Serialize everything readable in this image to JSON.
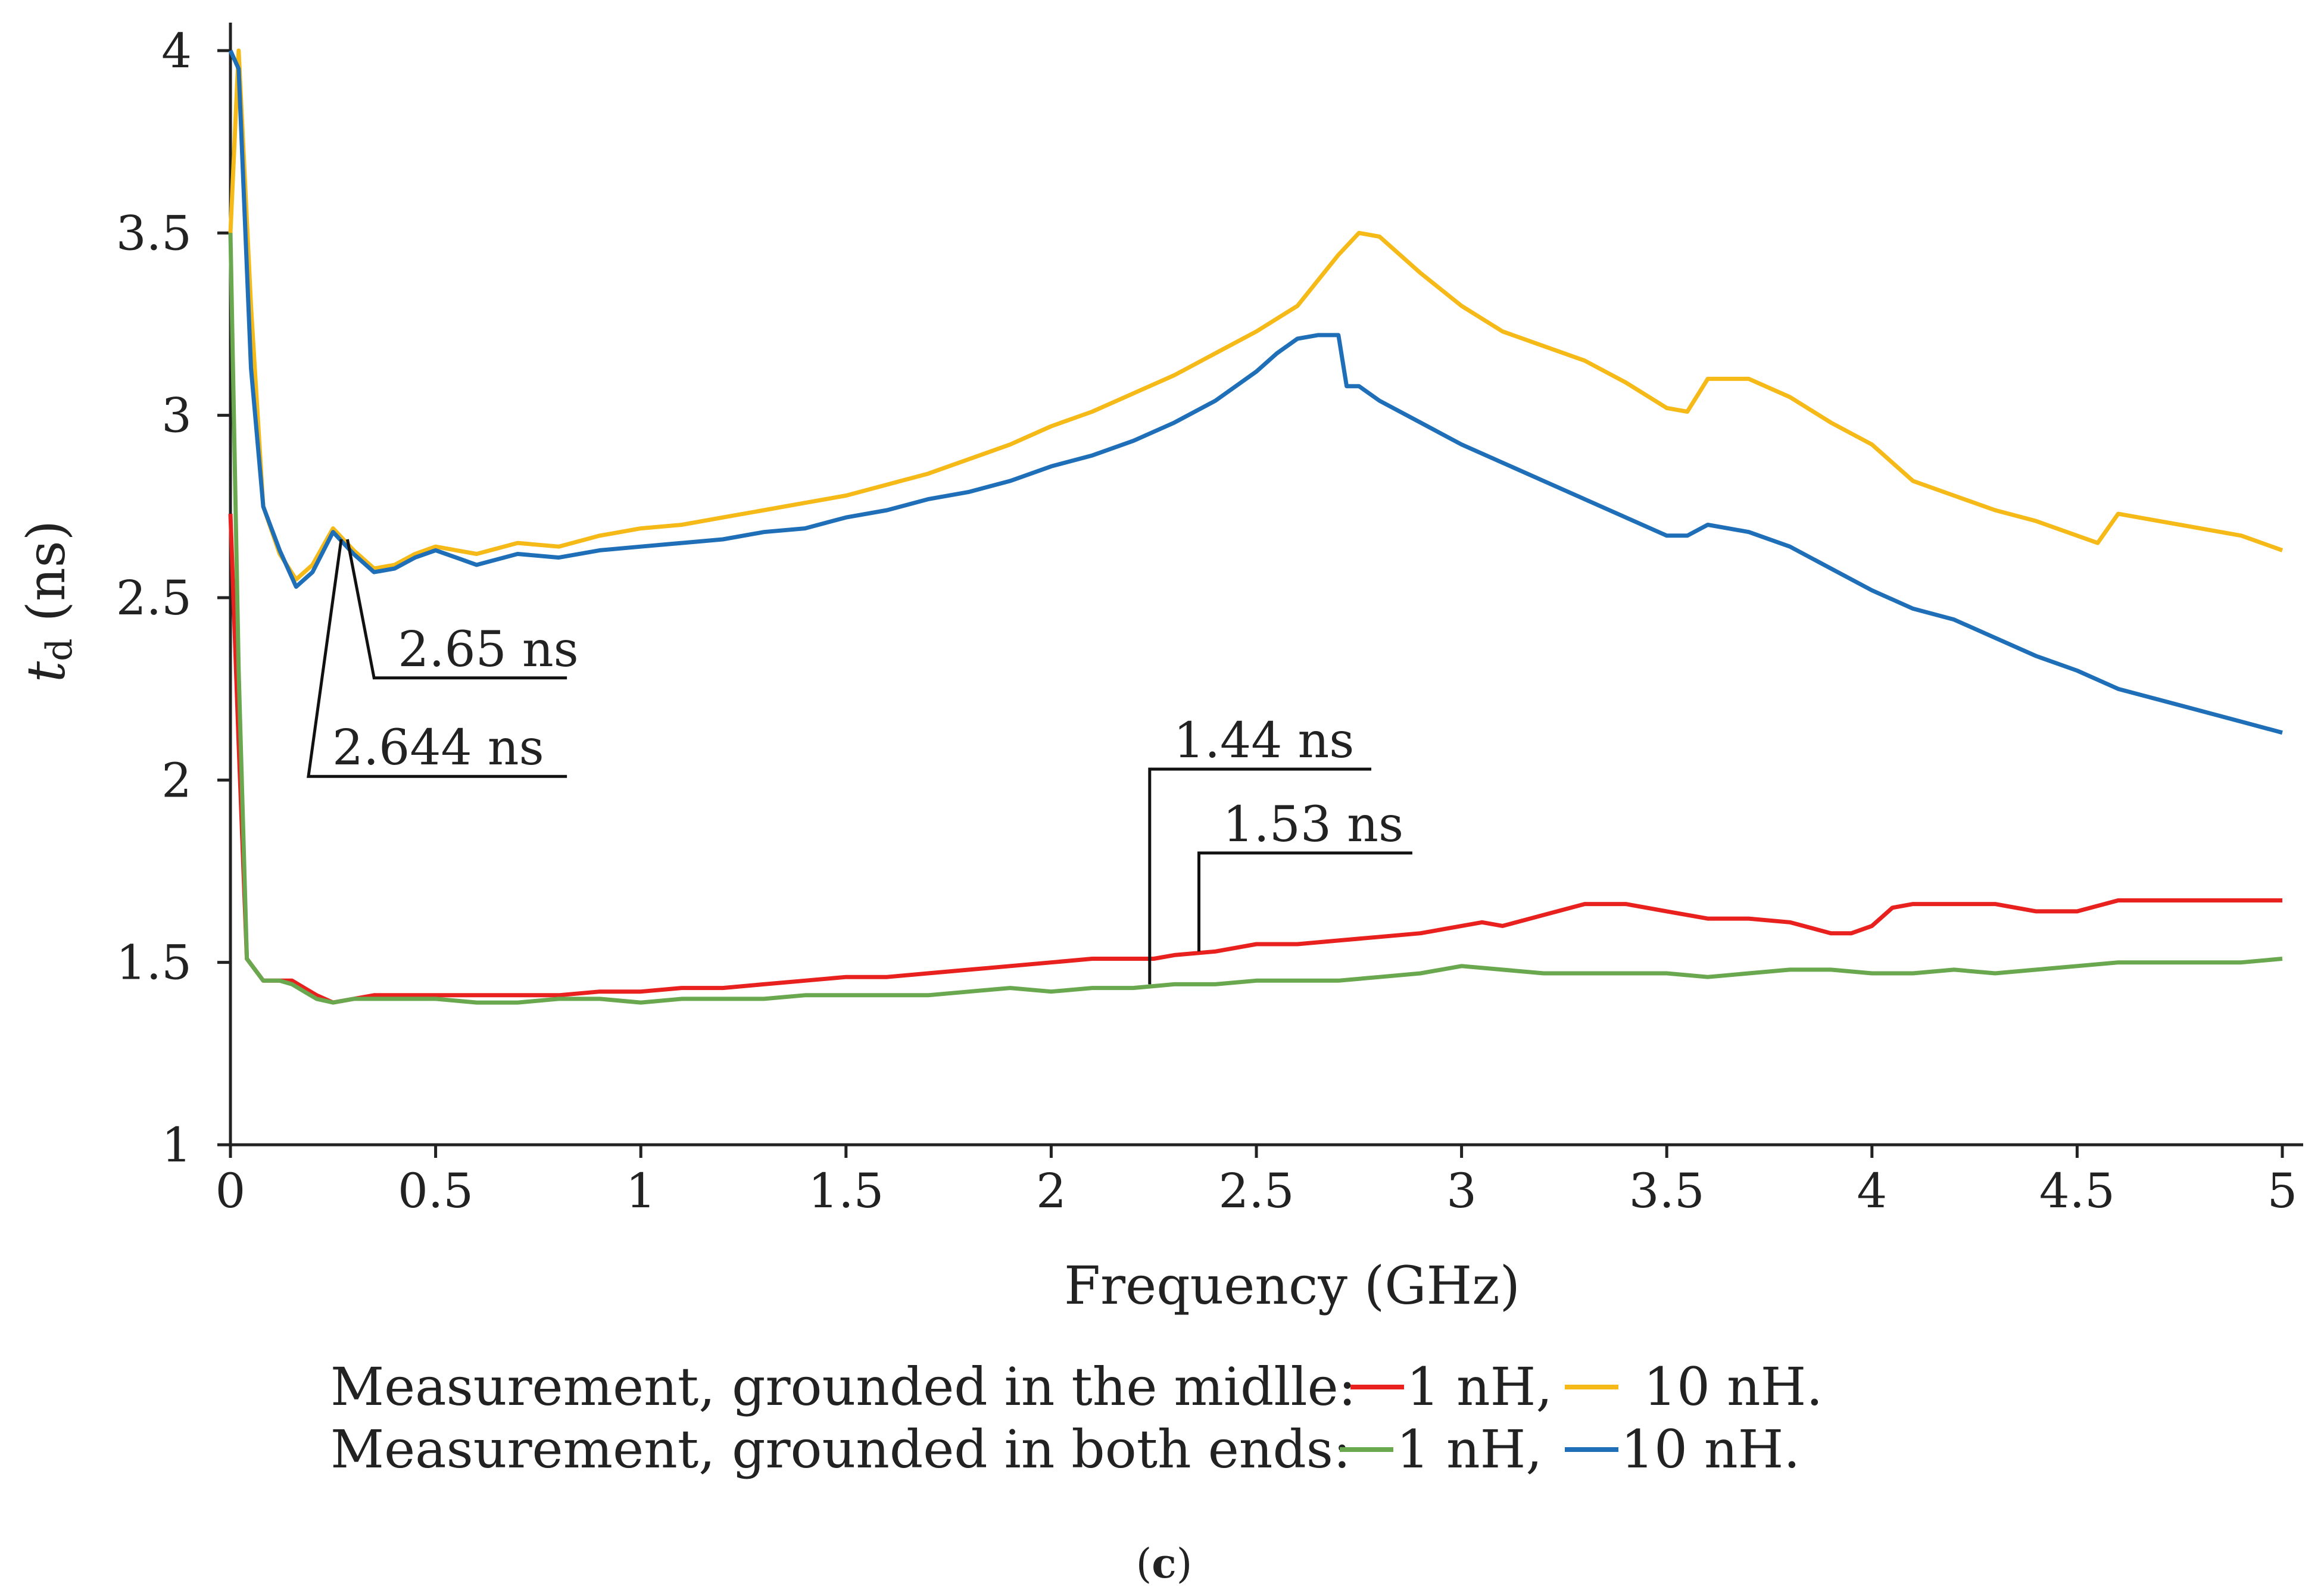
{
  "chart_data": {
    "type": "line",
    "xlabel": "Frequency  (GHz)",
    "ylabel_main": "t",
    "ylabel_sub": "d",
    "ylabel_unit": " (ns)",
    "xlim": [
      0,
      5
    ],
    "ylim": [
      1,
      4
    ],
    "xticks": [
      0,
      0.5,
      1,
      1.5,
      2,
      2.5,
      3,
      3.5,
      4,
      4.5,
      5
    ],
    "xtick_labels": [
      "0",
      "0.5",
      "1",
      "1.5",
      "2",
      "2.5",
      "3",
      "3.5",
      "4",
      "4.5",
      "5"
    ],
    "yticks": [
      1,
      1.5,
      2,
      2.5,
      3,
      3.5,
      4
    ],
    "ytick_labels": [
      "1",
      "1.5",
      "2",
      "2.5",
      "3",
      "3.5",
      "4"
    ],
    "grid": false,
    "series": [
      {
        "name": "Measurement, grounded in the midlle: 1 nH",
        "color": "#e8201e",
        "x": [
          0,
          0.02,
          0.04,
          0.08,
          0.12,
          0.15,
          0.18,
          0.21,
          0.25,
          0.3,
          0.35,
          0.4,
          0.45,
          0.5,
          0.6,
          0.7,
          0.8,
          0.9,
          1.0,
          1.1,
          1.2,
          1.3,
          1.4,
          1.5,
          1.6,
          1.7,
          1.8,
          1.9,
          2.0,
          2.1,
          2.2,
          2.25,
          2.3,
          2.4,
          2.5,
          2.6,
          2.7,
          2.8,
          2.9,
          3.0,
          3.05,
          3.1,
          3.2,
          3.3,
          3.4,
          3.5,
          3.6,
          3.7,
          3.8,
          3.9,
          3.95,
          4.0,
          4.05,
          4.1,
          4.2,
          4.3,
          4.4,
          4.5,
          4.6,
          4.7,
          4.8,
          4.9,
          5.0
        ],
        "y": [
          2.73,
          2.1,
          1.51,
          1.45,
          1.45,
          1.45,
          1.43,
          1.41,
          1.39,
          1.4,
          1.41,
          1.41,
          1.41,
          1.41,
          1.41,
          1.41,
          1.41,
          1.42,
          1.42,
          1.43,
          1.43,
          1.44,
          1.45,
          1.46,
          1.46,
          1.47,
          1.48,
          1.49,
          1.5,
          1.51,
          1.51,
          1.51,
          1.52,
          1.53,
          1.55,
          1.55,
          1.56,
          1.57,
          1.58,
          1.6,
          1.61,
          1.6,
          1.63,
          1.66,
          1.66,
          1.64,
          1.62,
          1.62,
          1.61,
          1.58,
          1.58,
          1.6,
          1.65,
          1.66,
          1.66,
          1.66,
          1.64,
          1.64,
          1.67,
          1.67,
          1.67,
          1.67,
          1.67
        ]
      },
      {
        "name": "Measurement, grounded in the midlle: 10 nH",
        "color": "#f5b918",
        "x": [
          0,
          0.02,
          0.05,
          0.08,
          0.12,
          0.16,
          0.2,
          0.25,
          0.3,
          0.35,
          0.4,
          0.45,
          0.5,
          0.55,
          0.6,
          0.7,
          0.8,
          0.9,
          1.0,
          1.1,
          1.2,
          1.3,
          1.4,
          1.5,
          1.6,
          1.7,
          1.8,
          1.9,
          2.0,
          2.1,
          2.2,
          2.3,
          2.4,
          2.5,
          2.6,
          2.7,
          2.75,
          2.8,
          2.9,
          3.0,
          3.1,
          3.2,
          3.3,
          3.4,
          3.5,
          3.55,
          3.6,
          3.7,
          3.8,
          3.9,
          4.0,
          4.1,
          4.2,
          4.3,
          4.4,
          4.55,
          4.6,
          4.7,
          4.8,
          4.9,
          5.0
        ],
        "y": [
          3.5,
          4.0,
          3.3,
          2.75,
          2.62,
          2.55,
          2.59,
          2.69,
          2.63,
          2.58,
          2.59,
          2.62,
          2.64,
          2.63,
          2.62,
          2.65,
          2.64,
          2.67,
          2.69,
          2.7,
          2.72,
          2.74,
          2.76,
          2.78,
          2.81,
          2.84,
          2.88,
          2.92,
          2.97,
          3.01,
          3.06,
          3.11,
          3.17,
          3.23,
          3.3,
          3.44,
          3.5,
          3.49,
          3.39,
          3.3,
          3.23,
          3.19,
          3.15,
          3.09,
          3.02,
          3.01,
          3.1,
          3.1,
          3.05,
          2.98,
          2.92,
          2.82,
          2.78,
          2.74,
          2.71,
          2.65,
          2.73,
          2.71,
          2.69,
          2.67,
          2.63
        ]
      },
      {
        "name": "Measurement, grounded in both ends: 1 nH",
        "color": "#6aa84f",
        "x": [
          0,
          0.02,
          0.04,
          0.08,
          0.12,
          0.15,
          0.18,
          0.21,
          0.25,
          0.3,
          0.35,
          0.4,
          0.5,
          0.6,
          0.7,
          0.8,
          0.9,
          1.0,
          1.1,
          1.2,
          1.3,
          1.4,
          1.5,
          1.6,
          1.7,
          1.8,
          1.9,
          2.0,
          2.1,
          2.2,
          2.3,
          2.4,
          2.5,
          2.6,
          2.7,
          2.8,
          2.9,
          3.0,
          3.1,
          3.2,
          3.3,
          3.4,
          3.5,
          3.6,
          3.7,
          3.8,
          3.9,
          4.0,
          4.1,
          4.2,
          4.3,
          4.4,
          4.5,
          4.6,
          4.7,
          4.8,
          4.9,
          5.0
        ],
        "y": [
          3.5,
          2.3,
          1.51,
          1.45,
          1.45,
          1.44,
          1.42,
          1.4,
          1.39,
          1.4,
          1.4,
          1.4,
          1.4,
          1.39,
          1.39,
          1.4,
          1.4,
          1.39,
          1.4,
          1.4,
          1.4,
          1.41,
          1.41,
          1.41,
          1.41,
          1.42,
          1.43,
          1.42,
          1.43,
          1.43,
          1.44,
          1.44,
          1.45,
          1.45,
          1.45,
          1.46,
          1.47,
          1.49,
          1.48,
          1.47,
          1.47,
          1.47,
          1.47,
          1.46,
          1.47,
          1.48,
          1.48,
          1.47,
          1.47,
          1.48,
          1.47,
          1.48,
          1.49,
          1.5,
          1.5,
          1.5,
          1.5,
          1.51
        ]
      },
      {
        "name": "Measurement, grounded in both ends: 10 nH",
        "color": "#1f6fb8",
        "x": [
          0,
          0.02,
          0.05,
          0.08,
          0.12,
          0.16,
          0.2,
          0.25,
          0.3,
          0.35,
          0.4,
          0.45,
          0.5,
          0.55,
          0.6,
          0.7,
          0.8,
          0.9,
          1.0,
          1.1,
          1.2,
          1.3,
          1.4,
          1.5,
          1.6,
          1.7,
          1.8,
          1.9,
          2.0,
          2.1,
          2.2,
          2.3,
          2.4,
          2.5,
          2.55,
          2.6,
          2.65,
          2.7,
          2.72,
          2.75,
          2.8,
          2.9,
          3.0,
          3.1,
          3.2,
          3.3,
          3.4,
          3.5,
          3.55,
          3.6,
          3.7,
          3.8,
          3.9,
          4.0,
          4.1,
          4.2,
          4.3,
          4.4,
          4.5,
          4.6,
          4.7,
          4.8,
          4.9,
          5.0
        ],
        "y": [
          4.0,
          3.95,
          3.13,
          2.75,
          2.63,
          2.53,
          2.57,
          2.68,
          2.62,
          2.57,
          2.58,
          2.61,
          2.63,
          2.61,
          2.59,
          2.62,
          2.61,
          2.63,
          2.64,
          2.65,
          2.66,
          2.68,
          2.69,
          2.72,
          2.74,
          2.77,
          2.79,
          2.82,
          2.86,
          2.89,
          2.93,
          2.98,
          3.04,
          3.12,
          3.17,
          3.21,
          3.22,
          3.22,
          3.08,
          3.08,
          3.04,
          2.98,
          2.92,
          2.87,
          2.82,
          2.77,
          2.72,
          2.67,
          2.67,
          2.7,
          2.68,
          2.64,
          2.58,
          2.52,
          2.47,
          2.44,
          2.39,
          2.34,
          2.3,
          2.25,
          2.22,
          2.19,
          2.16,
          2.13
        ]
      }
    ],
    "annotations": [
      {
        "text": "2.65 ns",
        "x": 0.285,
        "y": 2.66,
        "text_x": 0.35,
        "text_y": 2.28,
        "line_end_x": 0.82
      },
      {
        "text": "2.644 ns",
        "x": 0.27,
        "y": 2.66,
        "text_x": 0.19,
        "text_y": 2.01,
        "line_end_x": 0.82
      },
      {
        "text": "1.44 ns",
        "x": 2.24,
        "y": 1.44,
        "text_x": 2.24,
        "text_y": 2.03,
        "line_end_x": 2.78
      },
      {
        "text": "1.53 ns",
        "x": 2.36,
        "y": 1.53,
        "text_x": 2.36,
        "text_y": 1.8,
        "line_end_x": 2.88
      }
    ]
  },
  "legend": {
    "row1_label": "Measurement, grounded in the midlle:",
    "row1_item1": "1 nH,",
    "row1_item2": "10 nH.",
    "row2_label": "Measurement, grounded in both ends:",
    "row2_item1": "1 nH,",
    "row2_item2": "10 nH."
  },
  "caption": {
    "open": "(",
    "letter": "c",
    "close": ")"
  }
}
